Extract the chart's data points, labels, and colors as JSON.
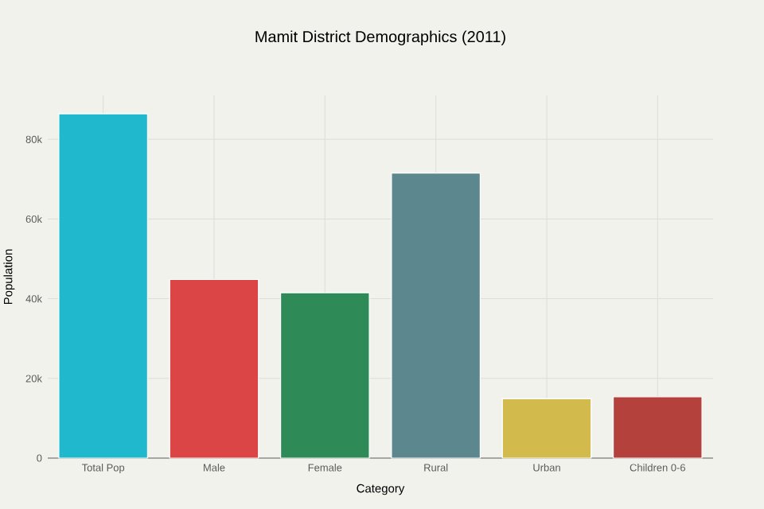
{
  "chart_data": {
    "type": "bar",
    "title": "Mamit District Demographics (2011)",
    "xlabel": "Category",
    "ylabel": "Population",
    "categories": [
      "Total Pop",
      "Male",
      "Female",
      "Rural",
      "Urban",
      "Children 0-6"
    ],
    "values": [
      86400,
      44800,
      41500,
      71500,
      14900,
      15400
    ],
    "colors": [
      "#1fb8cd",
      "#db4545",
      "#2e8b57",
      "#5d878f",
      "#d2ba4c",
      "#b4413c"
    ],
    "ylim": [
      0,
      91000
    ],
    "yticks": [
      0,
      {
        "value": 20000,
        "label": "20k"
      },
      {
        "value": 40000,
        "label": "40k"
      },
      {
        "value": 60000,
        "label": "60k"
      },
      {
        "value": 80000,
        "label": "80k"
      }
    ],
    "grid": true
  }
}
